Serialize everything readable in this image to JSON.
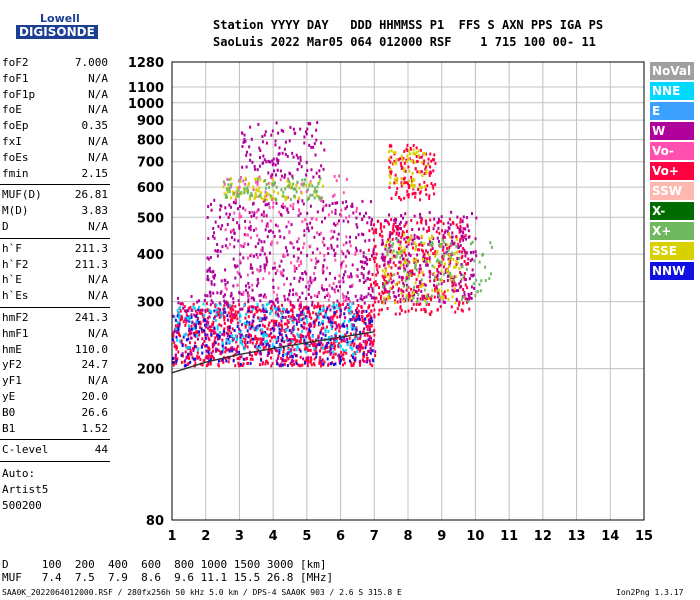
{
  "logo": {
    "top": "Lowell",
    "bottom": "DIGISONDE"
  },
  "header": {
    "line1": "Station YYYY DAY   DDD HHMMSS P1  FFS S AXN PPS IGA PS",
    "line2": "SaoLuis 2022 Mar05 064 012000 RSF    1 715 100 00- 11"
  },
  "params": {
    "group1": [
      {
        "k": "foF2",
        "v": "7.000"
      },
      {
        "k": "foF1",
        "v": "N/A"
      },
      {
        "k": "foF1p",
        "v": "N/A"
      },
      {
        "k": "foE",
        "v": "N/A"
      },
      {
        "k": "foEp",
        "v": "0.35"
      },
      {
        "k": "fxI",
        "v": "N/A"
      },
      {
        "k": "foEs",
        "v": "N/A"
      },
      {
        "k": "fmin",
        "v": "2.15"
      }
    ],
    "group2": [
      {
        "k": "MUF(D)",
        "v": "26.81"
      },
      {
        "k": "M(D)",
        "v": "3.83"
      },
      {
        "k": "D",
        "v": "N/A"
      }
    ],
    "group3": [
      {
        "k": "h`F",
        "v": "211.3"
      },
      {
        "k": "h`F2",
        "v": "211.3"
      },
      {
        "k": "h`E",
        "v": "N/A"
      },
      {
        "k": "h`Es",
        "v": "N/A"
      }
    ],
    "group4": [
      {
        "k": "hmF2",
        "v": "241.3"
      },
      {
        "k": "hmF1",
        "v": "N/A"
      },
      {
        "k": "hmE",
        "v": "110.0"
      },
      {
        "k": "yF2",
        "v": "24.7"
      },
      {
        "k": "yF1",
        "v": "N/A"
      },
      {
        "k": "yE",
        "v": "20.0"
      },
      {
        "k": "B0",
        "v": "26.6"
      },
      {
        "k": "B1",
        "v": "1.52"
      }
    ],
    "clevel": {
      "k": "C-level",
      "v": "44"
    },
    "auto": [
      "Auto:",
      "Artist5",
      "500200"
    ]
  },
  "muf_table": {
    "d_line": "D     100  200  400  600  800 1000 1500 3000 [km]",
    "muf_line": "MUF   7.4  7.5  7.9  8.6  9.6 11.1 15.5 26.8 [MHz]"
  },
  "footer": {
    "left": "SAA0K_2022064012000.RSF / 280fx256h 50 kHz 5.0 km / DPS-4 SAA0K 903 / 2.6 S 315.8 E",
    "right": "Ion2Png 1.3.17"
  },
  "legend": [
    {
      "label": "NoVal",
      "bg": "#a0a0a0",
      "fg": "#ffffff"
    },
    {
      "label": "NNE",
      "bg": "#00d8ff",
      "fg": "#ffffff"
    },
    {
      "label": "E",
      "bg": "#3ca0ff",
      "fg": "#ffffff"
    },
    {
      "label": "W",
      "bg": "#b0009c",
      "fg": "#ffffff"
    },
    {
      "label": "Vo-",
      "bg": "#ff50b0",
      "fg": "#ffffff"
    },
    {
      "label": "Vo+",
      "bg": "#ff0040",
      "fg": "#ffffff"
    },
    {
      "label": "SSW",
      "bg": "#ffb8b0",
      "fg": "#ffffff"
    },
    {
      "label": "X-",
      "bg": "#006c00",
      "fg": "#ffffff"
    },
    {
      "label": "X+",
      "bg": "#70b860",
      "fg": "#ffffff"
    },
    {
      "label": "SSE",
      "bg": "#d8d000",
      "fg": "#ffffff"
    },
    {
      "label": "NNW",
      "bg": "#1010e0",
      "fg": "#ffffff"
    }
  ],
  "chart_data": {
    "type": "scatter",
    "xlabel": "",
    "ylabel": "",
    "xlim": [
      1,
      15
    ],
    "ylim": [
      80,
      1280
    ],
    "yscale": "log",
    "xticks": [
      1,
      2,
      3,
      4,
      5,
      6,
      7,
      8,
      9,
      10,
      11,
      12,
      13,
      14,
      15
    ],
    "yticks": [
      80,
      200,
      300,
      400,
      500,
      600,
      700,
      800,
      900,
      1000,
      1100,
      1280
    ],
    "grid": true,
    "trace": {
      "x": [
        1.0,
        2.0,
        3.0,
        4.0,
        5.0,
        6.0,
        7.0
      ],
      "y": [
        195,
        208,
        218,
        226,
        234,
        242,
        250
      ]
    },
    "clusters": [
      {
        "name": "F-trace low",
        "xmin": 1.0,
        "xmax": 7.0,
        "ymin": 205,
        "ymax": 300,
        "color": "#ff0040",
        "n": 900
      },
      {
        "name": "F-trace low",
        "xmin": 1.0,
        "xmax": 7.0,
        "ymin": 205,
        "ymax": 290,
        "color": "#1010e0",
        "n": 260
      },
      {
        "name": "F-trace low",
        "xmin": 1.0,
        "xmax": 6.5,
        "ymin": 220,
        "ymax": 300,
        "color": "#00d8ff",
        "n": 200
      },
      {
        "name": "F-trace low",
        "xmin": 1.0,
        "xmax": 7.0,
        "ymin": 210,
        "ymax": 320,
        "color": "#b0009c",
        "n": 220
      },
      {
        "name": "spread 7-10",
        "xmin": 6.8,
        "xmax": 9.8,
        "ymin": 280,
        "ymax": 500,
        "color": "#ff0040",
        "n": 380
      },
      {
        "name": "spread 7-10",
        "xmin": 7.2,
        "xmax": 10.0,
        "ymin": 300,
        "ymax": 520,
        "color": "#b0009c",
        "n": 260
      },
      {
        "name": "spread 7-10",
        "xmin": 7.2,
        "xmax": 9.5,
        "ymin": 300,
        "ymax": 460,
        "color": "#d8d000",
        "n": 120
      },
      {
        "name": "spread 7-10",
        "xmin": 7.2,
        "xmax": 10.5,
        "ymin": 300,
        "ymax": 440,
        "color": "#70b860",
        "n": 100
      },
      {
        "name": "upper 7.5-8.5",
        "xmin": 7.4,
        "xmax": 8.8,
        "ymin": 560,
        "ymax": 780,
        "color": "#ff0040",
        "n": 120
      },
      {
        "name": "upper 7.5-8.5",
        "xmin": 7.4,
        "xmax": 8.6,
        "ymin": 600,
        "ymax": 760,
        "color": "#d8d000",
        "n": 60
      },
      {
        "name": "mid 2-7",
        "xmin": 2.0,
        "xmax": 7.0,
        "ymin": 300,
        "ymax": 560,
        "color": "#b0009c",
        "n": 420
      },
      {
        "name": "mid 2-7",
        "xmin": 2.5,
        "xmax": 6.5,
        "ymin": 300,
        "ymax": 650,
        "color": "#ff50b0",
        "n": 200
      },
      {
        "name": "mid 2-7",
        "xmin": 2.5,
        "xmax": 5.5,
        "ymin": 560,
        "ymax": 640,
        "color": "#d8d000",
        "n": 80
      },
      {
        "name": "mid 2-7",
        "xmin": 2.5,
        "xmax": 5.5,
        "ymin": 560,
        "ymax": 640,
        "color": "#70b860",
        "n": 80
      },
      {
        "name": "high 3-5.5",
        "xmin": 3.0,
        "xmax": 5.5,
        "ymin": 640,
        "ymax": 900,
        "color": "#b0009c",
        "n": 120
      }
    ]
  }
}
